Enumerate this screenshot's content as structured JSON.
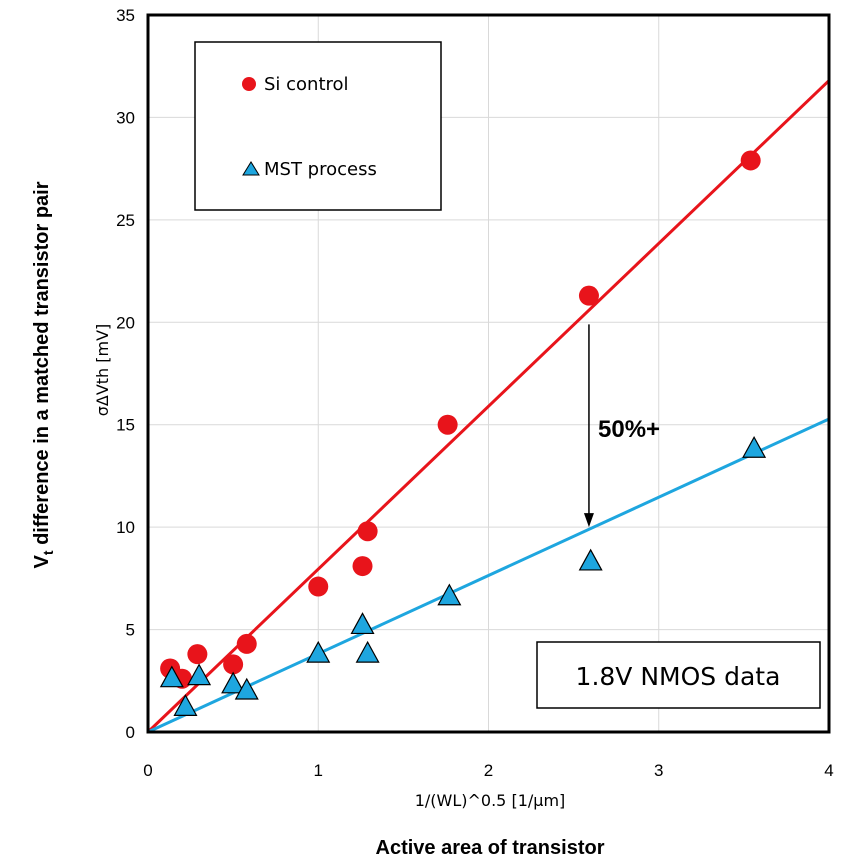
{
  "chart_data": {
    "type": "scatter",
    "xlabel": "1/(WL)^0.5 [1/µm]",
    "xlabel_bold": "Active area of transistor",
    "ylabel": "σΔVth [mV]",
    "ylabel_bold_main": "V",
    "ylabel_bold_sub": "t",
    "ylabel_bold_rest": " difference in a matched transistor  pair",
    "xlim": [
      0,
      4
    ],
    "ylim": [
      0,
      35
    ],
    "x_ticks": [
      "0",
      "1",
      "2",
      "3",
      "4"
    ],
    "y_ticks": [
      "0",
      "5",
      "10",
      "15",
      "20",
      "25",
      "30",
      "35"
    ],
    "grid": true,
    "legend_position": "top-left",
    "series": [
      {
        "name": "Si control",
        "marker": "circle",
        "color": "#e8141b",
        "points": [
          [
            0.13,
            3.1
          ],
          [
            0.2,
            2.6
          ],
          [
            0.29,
            3.8
          ],
          [
            0.5,
            3.3
          ],
          [
            0.58,
            4.3
          ],
          [
            1.0,
            7.1
          ],
          [
            1.26,
            8.1
          ],
          [
            1.29,
            9.8
          ],
          [
            1.76,
            15.0
          ],
          [
            2.59,
            21.3
          ],
          [
            3.54,
            27.9
          ]
        ],
        "trendline": {
          "slope": 7.95,
          "intercept": 0,
          "color": "#e8141b"
        }
      },
      {
        "name": "MST process",
        "marker": "triangle",
        "color": "#1ea6df",
        "points": [
          [
            0.14,
            2.7
          ],
          [
            0.22,
            1.3
          ],
          [
            0.3,
            2.8
          ],
          [
            0.5,
            2.4
          ],
          [
            0.58,
            2.1
          ],
          [
            1.0,
            3.9
          ],
          [
            1.26,
            5.3
          ],
          [
            1.29,
            3.9
          ],
          [
            1.77,
            6.7
          ],
          [
            2.6,
            8.4
          ],
          [
            3.56,
            13.9
          ]
        ],
        "trendline": {
          "slope": 3.82,
          "intercept": 0,
          "color": "#1ea6df"
        }
      }
    ],
    "annotations": {
      "arrow_label": "50%+",
      "arrow_from": [
        2.59,
        19.9
      ],
      "arrow_to": [
        2.59,
        10.0
      ],
      "box_label": "1.8V NMOS data"
    }
  }
}
